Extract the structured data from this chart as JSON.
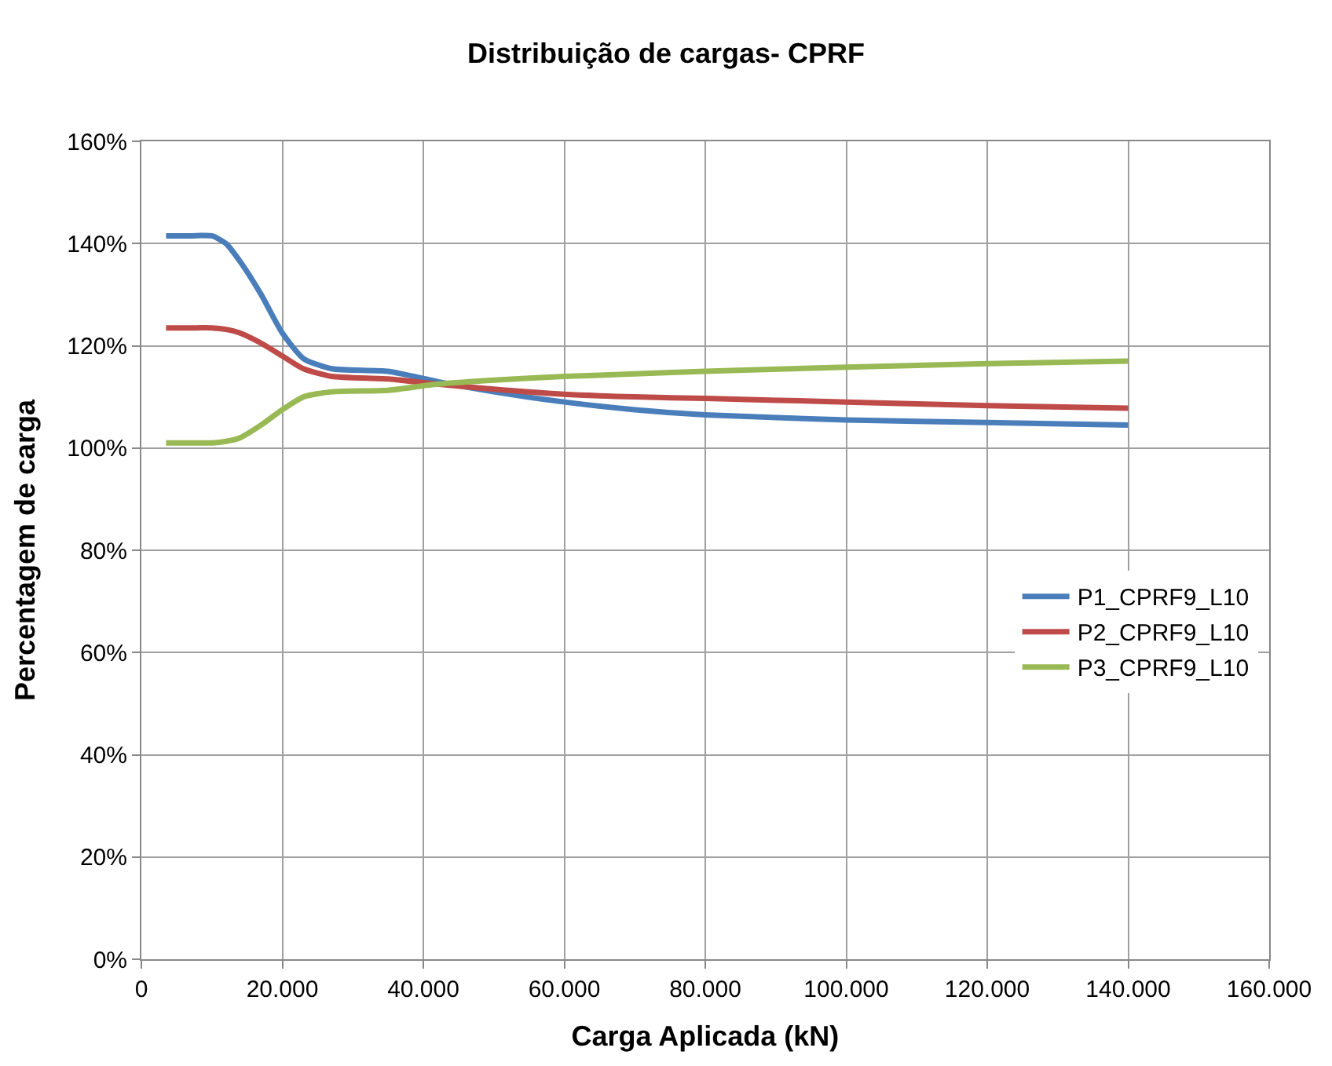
{
  "chart_data": {
    "type": "line",
    "title": "Distribuição de cargas- CPRF",
    "xlabel": "Carga Aplicada (kN)",
    "ylabel": "Percentagem de carga",
    "x": [
      3500,
      7000,
      10000,
      12000,
      14000,
      17000,
      20000,
      23000,
      27000,
      35000,
      42000,
      50000,
      60000,
      70000,
      80000,
      100000,
      120000,
      140000
    ],
    "series": [
      {
        "name": "P1_CPRF9_L10",
        "color": "#4a7ebb",
        "values": [
          141.5,
          141.5,
          141.5,
          140,
          136.5,
          130,
          122.5,
          117.5,
          115.5,
          115,
          113,
          111,
          109,
          107.5,
          106.5,
          105.5,
          105,
          104.5
        ]
      },
      {
        "name": "P2_CPRF9_L10",
        "color": "#be4b48",
        "values": [
          123.5,
          123.5,
          123.5,
          123.2,
          122.5,
          120.5,
          118,
          115.5,
          114,
          113.5,
          112.5,
          111.5,
          110.5,
          110,
          109.7,
          109,
          108.3,
          107.8
        ]
      },
      {
        "name": "P3_CPRF9_L10",
        "color": "#98b954",
        "values": [
          101,
          101,
          101,
          101.3,
          102,
          104.5,
          107.5,
          110,
          111,
          111.3,
          112.5,
          113.3,
          114,
          114.5,
          115,
          115.8,
          116.5,
          117
        ]
      }
    ],
    "xlim": [
      0,
      160000
    ],
    "xticks": [
      {
        "value": 0,
        "label": "0"
      },
      {
        "value": 20000,
        "label": "20.000"
      },
      {
        "value": 40000,
        "label": "40.000"
      },
      {
        "value": 60000,
        "label": "60.000"
      },
      {
        "value": 80000,
        "label": "80.000"
      },
      {
        "value": 100000,
        "label": "100.000"
      },
      {
        "value": 120000,
        "label": "120.000"
      },
      {
        "value": 140000,
        "label": "140.000"
      },
      {
        "value": 160000,
        "label": "160.000"
      }
    ],
    "ylim": [
      0,
      160
    ],
    "yticks": [
      {
        "value": 0,
        "label": "0%"
      },
      {
        "value": 20,
        "label": "20%"
      },
      {
        "value": 40,
        "label": "40%"
      },
      {
        "value": 60,
        "label": "60%"
      },
      {
        "value": 80,
        "label": "80%"
      },
      {
        "value": 100,
        "label": "100%"
      },
      {
        "value": 120,
        "label": "120%"
      },
      {
        "value": 140,
        "label": "140%"
      },
      {
        "value": 160,
        "label": "160%"
      }
    ],
    "grid": true,
    "legend": "right",
    "marker": "none",
    "line_style": "solid"
  }
}
